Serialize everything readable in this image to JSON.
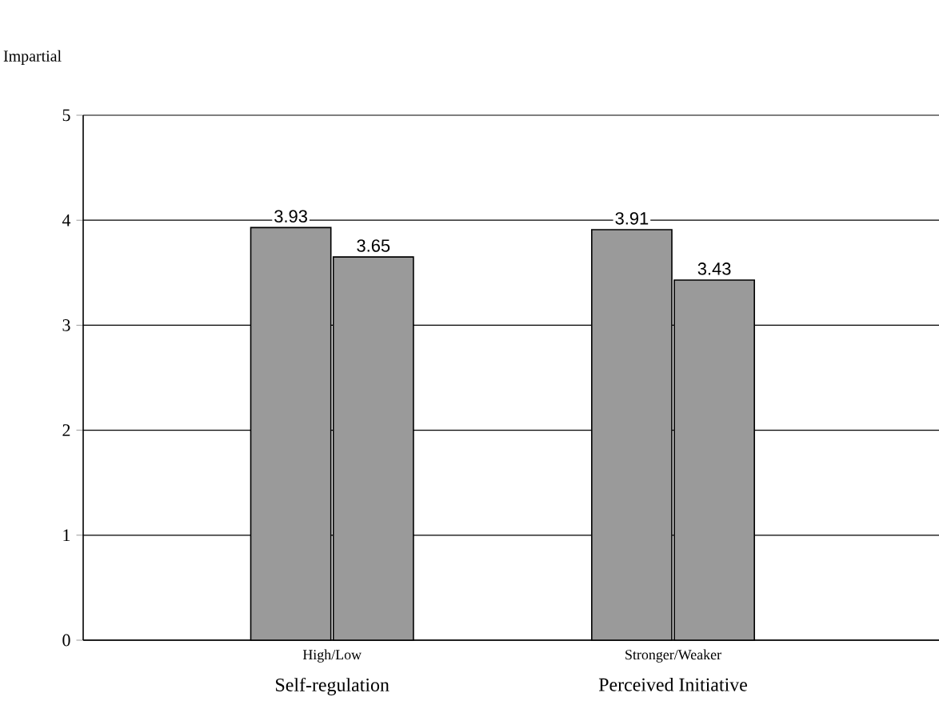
{
  "chart_data": {
    "type": "bar",
    "ylabel": "Impartial",
    "categories": [
      "High/Low",
      "Stronger/Weaker"
    ],
    "series": [
      {
        "color": "#9a9a9a",
        "values": [
          3.93,
          3.91
        ]
      },
      {
        "color": "#9a9a9a",
        "values": [
          3.65,
          3.43
        ]
      }
    ],
    "ylim": [
      0,
      5
    ],
    "yticks": [
      0,
      1,
      2,
      3,
      4,
      5
    ],
    "grid": "y",
    "data_labels": true,
    "annotations": [
      "Self-regulation",
      "Perceived Initiative"
    ]
  }
}
